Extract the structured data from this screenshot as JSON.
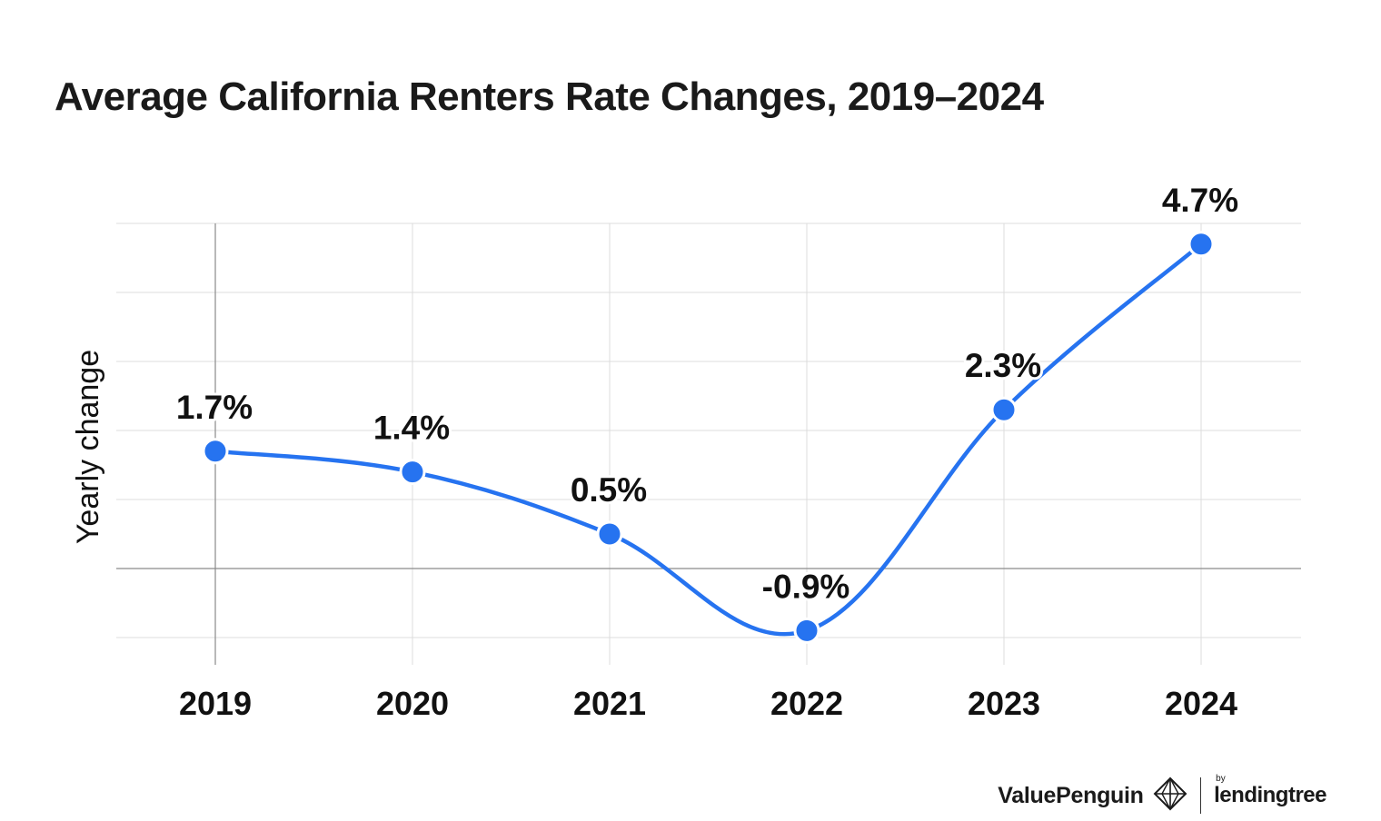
{
  "chart_data": {
    "type": "line",
    "title": "Average California Renters Rate Changes, 2019–2024",
    "ylabel": "Yearly change",
    "xlabel": "",
    "categories": [
      "2019",
      "2020",
      "2021",
      "2022",
      "2023",
      "2024"
    ],
    "values": [
      1.7,
      1.4,
      0.5,
      -0.9,
      2.3,
      4.7
    ],
    "data_labels": [
      "1.7%",
      "1.4%",
      "0.5%",
      "-0.9%",
      "2.3%",
      "4.7%"
    ],
    "ylim": [
      -1.0,
      5.0
    ],
    "gridlines": [
      -1,
      0,
      1,
      2,
      3,
      4,
      5
    ],
    "grid": true,
    "line_color": "#2673f0",
    "marker_color": "#2673f0"
  },
  "branding": {
    "name": "ValuePenguin",
    "by": "by",
    "partner": "lendingtree"
  }
}
